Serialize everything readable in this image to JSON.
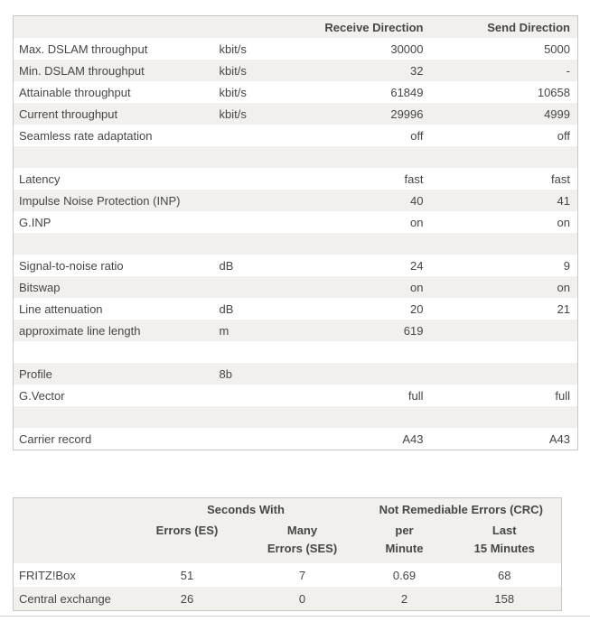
{
  "colors": {
    "zebra": "#f1f0ed",
    "border": "#c9c7c2",
    "text": "#464646",
    "divider": "#d6d4d1"
  },
  "dsl_table": {
    "header_receive": "Receive Direction",
    "header_send": "Send Direction",
    "rows": [
      {
        "name": "Max. DSLAM throughput",
        "unit": "kbit/s",
        "receive": "30000",
        "send": "5000"
      },
      {
        "name": "Min. DSLAM throughput",
        "unit": "kbit/s",
        "receive": "32",
        "send": "-"
      },
      {
        "name": "Attainable throughput",
        "unit": "kbit/s",
        "receive": "61849",
        "send": "10658"
      },
      {
        "name": "Current throughput",
        "unit": "kbit/s",
        "receive": "29996",
        "send": "4999"
      },
      {
        "name": "Seamless rate adaptation",
        "unit": "",
        "receive": "off",
        "send": "off"
      },
      {
        "empty": true
      },
      {
        "name": "Latency",
        "unit": "",
        "receive": "fast",
        "send": "fast"
      },
      {
        "name": "Impulse Noise Protection (INP)",
        "unit": "",
        "receive": "40",
        "send": "41"
      },
      {
        "name": "G.INP",
        "unit": "",
        "receive": "on",
        "send": "on"
      },
      {
        "empty": true
      },
      {
        "name": "Signal-to-noise ratio",
        "unit": "dB",
        "receive": "24",
        "send": "9"
      },
      {
        "name": "Bitswap",
        "unit": "",
        "receive": "on",
        "send": "on"
      },
      {
        "name": "Line attenuation",
        "unit": "dB",
        "receive": "20",
        "send": "21"
      },
      {
        "name": "approximate line length",
        "unit": "m",
        "receive": "619",
        "send": ""
      },
      {
        "empty": true
      },
      {
        "name": "Profile",
        "unit": "8b",
        "receive": "",
        "send": ""
      },
      {
        "name": "G.Vector",
        "unit": "",
        "receive": "full",
        "send": "full"
      },
      {
        "empty": true
      },
      {
        "name": "Carrier record",
        "unit": "",
        "receive": "A43",
        "send": "A43"
      }
    ]
  },
  "error_table": {
    "group_header_seconds": "Seconds With",
    "group_header_crc": "Not Remediable Errors (CRC)",
    "col_headers": [
      "Errors (ES)",
      "Many\nErrors (SES)",
      "per\nMinute",
      "Last\n15 Minutes"
    ],
    "rows": [
      {
        "name": "FRITZ!Box",
        "values": [
          "51",
          "7",
          "0.69",
          "68"
        ]
      },
      {
        "name": "Central exchange",
        "values": [
          "26",
          "0",
          "2",
          "158"
        ]
      }
    ]
  }
}
